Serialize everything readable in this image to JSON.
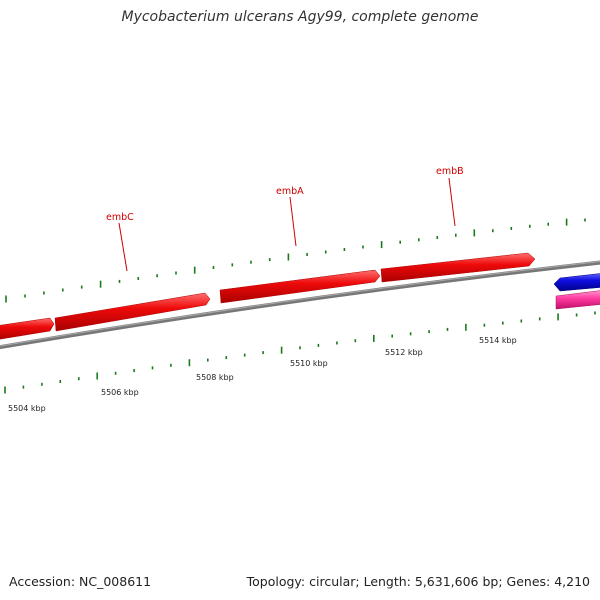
{
  "title": "Mycobacterium ulcerans Agy99, complete genome",
  "footer": {
    "accession": "Accession: NC_008611",
    "summary": "Topology: circular; Length: 5,631,606 bp; Genes: 4,210"
  },
  "axis_labels": [
    "5504 kbp",
    "5506 kbp",
    "5508 kbp",
    "5510 kbp",
    "5512 kbp",
    "5514 kbp"
  ],
  "genes": [
    {
      "name": "embC",
      "color": "#e8000a"
    },
    {
      "name": "embA",
      "color": "#e8000a"
    },
    {
      "name": "embB",
      "color": "#e8000a"
    }
  ],
  "colors": {
    "backbone": "#777777",
    "forward_gene": "#e8000a",
    "blue_feature": "#1010e0",
    "pink_feature": "#ff3aa0",
    "ticks": "#1a7a1a",
    "label": "#cc0000"
  }
}
